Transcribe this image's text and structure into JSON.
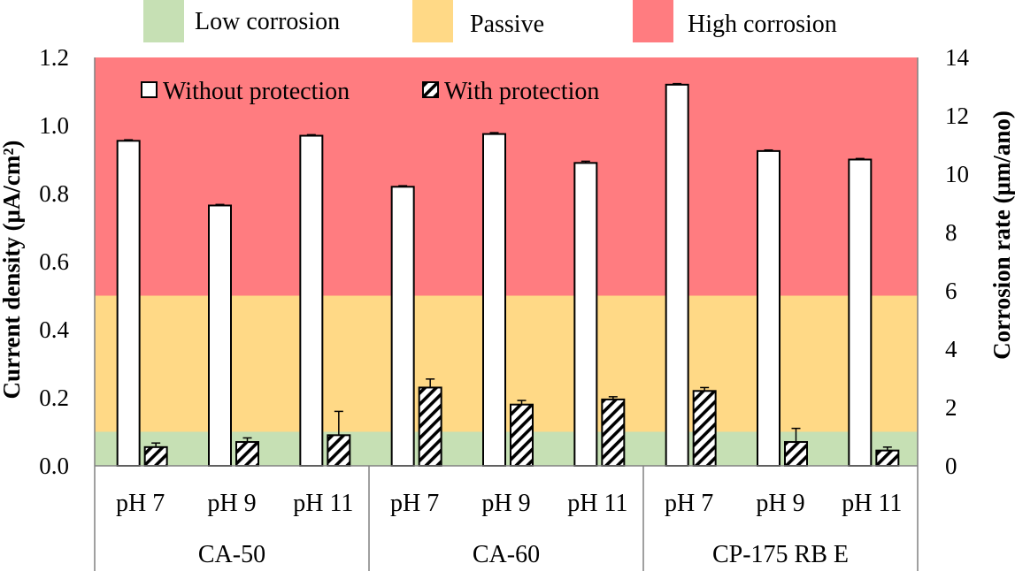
{
  "chart_data": {
    "type": "bar",
    "zone_legend": [
      {
        "label": "Low corrosion",
        "color": "#c6e0b4",
        "range": [
          0,
          0.1
        ]
      },
      {
        "label": "Passive",
        "color": "#ffd986",
        "range": [
          0.1,
          0.5
        ]
      },
      {
        "label": "High corrosion",
        "color": "#ff7c80",
        "range": [
          0.5,
          1.2
        ]
      }
    ],
    "groups": [
      {
        "name": "CA-50",
        "categories": [
          "pH 7",
          "pH 9",
          "pH 11"
        ]
      },
      {
        "name": "CA-60",
        "categories": [
          "pH 7",
          "pH 9",
          "pH 11"
        ]
      },
      {
        "name": "CP-175 RB E",
        "categories": [
          "pH 7",
          "pH 9",
          "pH 11"
        ]
      }
    ],
    "series": [
      {
        "name": "Without protection",
        "pattern": "white",
        "values": [
          0.955,
          0.765,
          0.97,
          0.82,
          0.975,
          0.89,
          1.12,
          0.925,
          0.9
        ],
        "errors": [
          0.003,
          0.003,
          0.003,
          0.003,
          0.004,
          0.005,
          0.003,
          0.003,
          0.003
        ]
      },
      {
        "name": "With protection",
        "pattern": "hatched",
        "values": [
          0.055,
          0.07,
          0.09,
          0.23,
          0.18,
          0.195,
          0.22,
          0.07,
          0.045
        ],
        "errors": [
          0.012,
          0.012,
          0.07,
          0.025,
          0.012,
          0.008,
          0.01,
          0.04,
          0.01
        ]
      }
    ],
    "ylabel": "Current density (μA/cm²)",
    "y2label": "Corrosion rate (μm/ano)",
    "ylim": [
      0,
      1.2
    ],
    "yticks": [
      "0.0",
      "0.2",
      "0.4",
      "0.6",
      "0.8",
      "1.0",
      "1.2"
    ],
    "y2lim": [
      0,
      14
    ],
    "y2ticks": [
      "0",
      "2",
      "4",
      "6",
      "8",
      "10",
      "12",
      "14"
    ],
    "legend_position": "top-left"
  }
}
